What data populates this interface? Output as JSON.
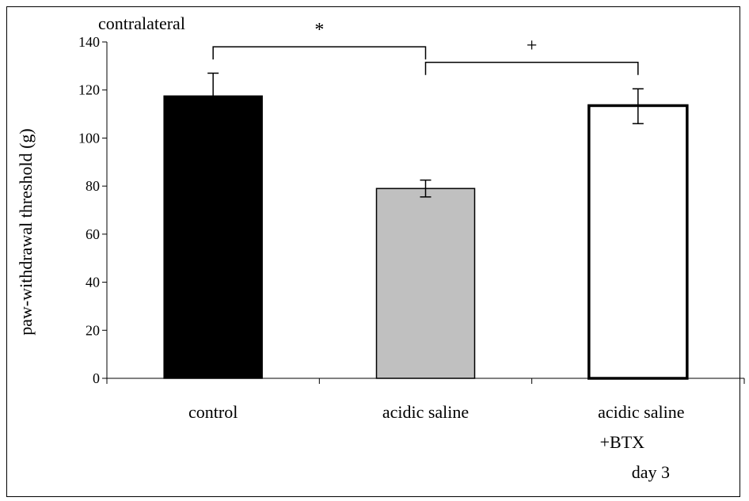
{
  "chart_data": {
    "type": "bar",
    "title": "contralateral",
    "ylabel": "paw-withdrawal threshold (g)",
    "xlabel": "",
    "ylim": [
      0,
      140
    ],
    "yticks": [
      0,
      20,
      40,
      60,
      80,
      100,
      120,
      140
    ],
    "categories": [
      "control",
      "acidic saline",
      "acidic saline +BTX day 3"
    ],
    "category_label_lines": [
      [
        "control"
      ],
      [
        "acidic saline"
      ],
      [
        "acidic saline",
        "+BTX",
        "day 3"
      ]
    ],
    "values": [
      117.5,
      79,
      113.5
    ],
    "error_low": [
      9.5,
      3.5,
      7.5
    ],
    "error_high": [
      9.5,
      3.5,
      7
    ],
    "bar_fills": [
      "#000000",
      "#c0c0c0",
      "#ffffff"
    ],
    "grid": false,
    "legend": "none",
    "annotations": [
      {
        "from": 0,
        "to": 1,
        "symbol": "*",
        "level": 138
      },
      {
        "from": 1,
        "to": 2,
        "symbol": "+",
        "level": 131.5
      }
    ]
  }
}
